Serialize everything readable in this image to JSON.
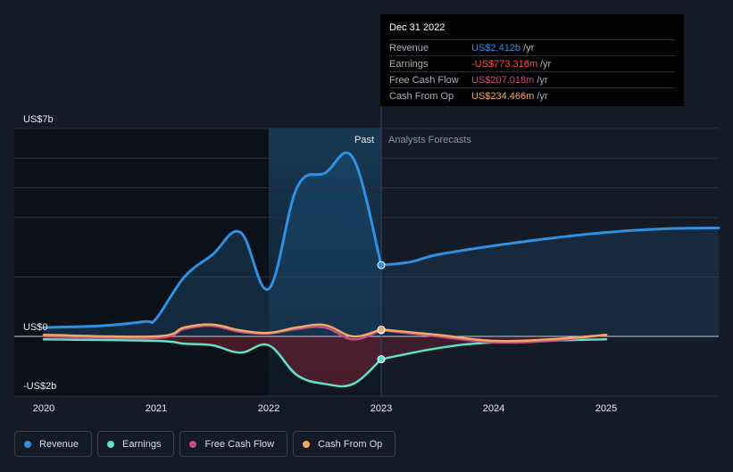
{
  "colors": {
    "revenue": "#2f8fe0",
    "earnings": "#5ee0c9",
    "free_cash_flow": "#c24f88",
    "cash_from_op": "#f0a868"
  },
  "tooltip": {
    "date": "Dec 31 2022",
    "rows": [
      {
        "label": "Revenue",
        "value": "US$2.412b",
        "unit": "/yr",
        "color": "#2f8fe0"
      },
      {
        "label": "Earnings",
        "value": "-US$773.316m",
        "unit": "/yr",
        "color": "#ff4d4d"
      },
      {
        "label": "Free Cash Flow",
        "value": "US$207.018m",
        "unit": "/yr",
        "color": "#c24f88"
      },
      {
        "label": "Cash From Op",
        "value": "US$234.466m",
        "unit": "/yr",
        "color": "#f0a868"
      }
    ]
  },
  "legend": [
    {
      "label": "Revenue",
      "color": "#2f8fe0"
    },
    {
      "label": "Earnings",
      "color": "#5ee0c9"
    },
    {
      "label": "Free Cash Flow",
      "color": "#c24f88"
    },
    {
      "label": "Cash From Op",
      "color": "#f0a868"
    }
  ],
  "chart_data": {
    "type": "line",
    "title": "",
    "xlabel": "",
    "ylabel": "",
    "y_unit": "US$ billions",
    "xlim": [
      2020,
      2026
    ],
    "ylim": [
      -2,
      7
    ],
    "x_ticks": [
      2020,
      2021,
      2022,
      2023,
      2024,
      2025
    ],
    "x_tick_labels": [
      "2020",
      "2021",
      "2022",
      "2023",
      "2024",
      "2025"
    ],
    "y_ticks": [
      7,
      0,
      -2
    ],
    "y_tick_labels": [
      "US$7b",
      "US$0",
      "-US$2b"
    ],
    "gridlines_y": [
      7,
      6,
      5,
      4,
      2
    ],
    "past_label": "Past",
    "forecast_label": "Analysts Forecasts",
    "past_end": 2023,
    "highlight_start": 2022,
    "focus_x": 2023,
    "series": [
      {
        "name": "Revenue",
        "key": "revenue",
        "area": true,
        "past": [
          [
            2020,
            0.3
          ],
          [
            2020.5,
            0.35
          ],
          [
            2020.9,
            0.5
          ],
          [
            2021,
            0.6
          ],
          [
            2021.25,
            2.0
          ],
          [
            2021.5,
            2.75
          ],
          [
            2021.75,
            3.5
          ],
          [
            2022,
            1.6
          ],
          [
            2022.25,
            5.0
          ],
          [
            2022.5,
            5.5
          ],
          [
            2022.75,
            6.0
          ],
          [
            2023,
            2.4
          ]
        ],
        "forecast": [
          [
            2023,
            2.4
          ],
          [
            2023.25,
            2.5
          ],
          [
            2023.5,
            2.75
          ],
          [
            2024,
            3.05
          ],
          [
            2024.5,
            3.3
          ],
          [
            2025,
            3.5
          ],
          [
            2025.5,
            3.62
          ],
          [
            2026,
            3.65
          ]
        ]
      },
      {
        "name": "Earnings",
        "key": "earnings",
        "area": true,
        "past": [
          [
            2020,
            -0.1
          ],
          [
            2021,
            -0.15
          ],
          [
            2021.25,
            -0.25
          ],
          [
            2021.5,
            -0.3
          ],
          [
            2021.75,
            -0.55
          ],
          [
            2022,
            -0.3
          ],
          [
            2022.25,
            -1.3
          ],
          [
            2022.5,
            -1.6
          ],
          [
            2022.75,
            -1.6
          ],
          [
            2023,
            -0.77
          ]
        ],
        "forecast": [
          [
            2023,
            -0.77
          ],
          [
            2023.5,
            -0.4
          ],
          [
            2024,
            -0.2
          ],
          [
            2025,
            -0.1
          ]
        ]
      },
      {
        "name": "Free Cash Flow",
        "key": "free_cash_flow",
        "area": false,
        "past": [
          [
            2020,
            0.0
          ],
          [
            2021,
            -0.05
          ],
          [
            2021.25,
            0.25
          ],
          [
            2021.5,
            0.35
          ],
          [
            2021.75,
            0.15
          ],
          [
            2022,
            0.1
          ],
          [
            2022.25,
            0.25
          ],
          [
            2022.5,
            0.3
          ],
          [
            2022.75,
            -0.1
          ],
          [
            2023,
            0.21
          ]
        ],
        "forecast": [
          [
            2023,
            0.21
          ],
          [
            2023.5,
            0.0
          ],
          [
            2024,
            -0.2
          ],
          [
            2024.5,
            -0.15
          ],
          [
            2025,
            0.05
          ]
        ]
      },
      {
        "name": "Cash From Op",
        "key": "cash_from_op",
        "area": false,
        "past": [
          [
            2020,
            0.05
          ],
          [
            2021,
            0.0
          ],
          [
            2021.25,
            0.3
          ],
          [
            2021.5,
            0.4
          ],
          [
            2021.75,
            0.2
          ],
          [
            2022,
            0.12
          ],
          [
            2022.25,
            0.3
          ],
          [
            2022.5,
            0.38
          ],
          [
            2022.75,
            0.0
          ],
          [
            2023,
            0.23
          ]
        ],
        "forecast": [
          [
            2023,
            0.23
          ],
          [
            2023.5,
            0.05
          ],
          [
            2024,
            -0.15
          ],
          [
            2024.5,
            -0.1
          ],
          [
            2025,
            0.05
          ]
        ]
      }
    ]
  }
}
